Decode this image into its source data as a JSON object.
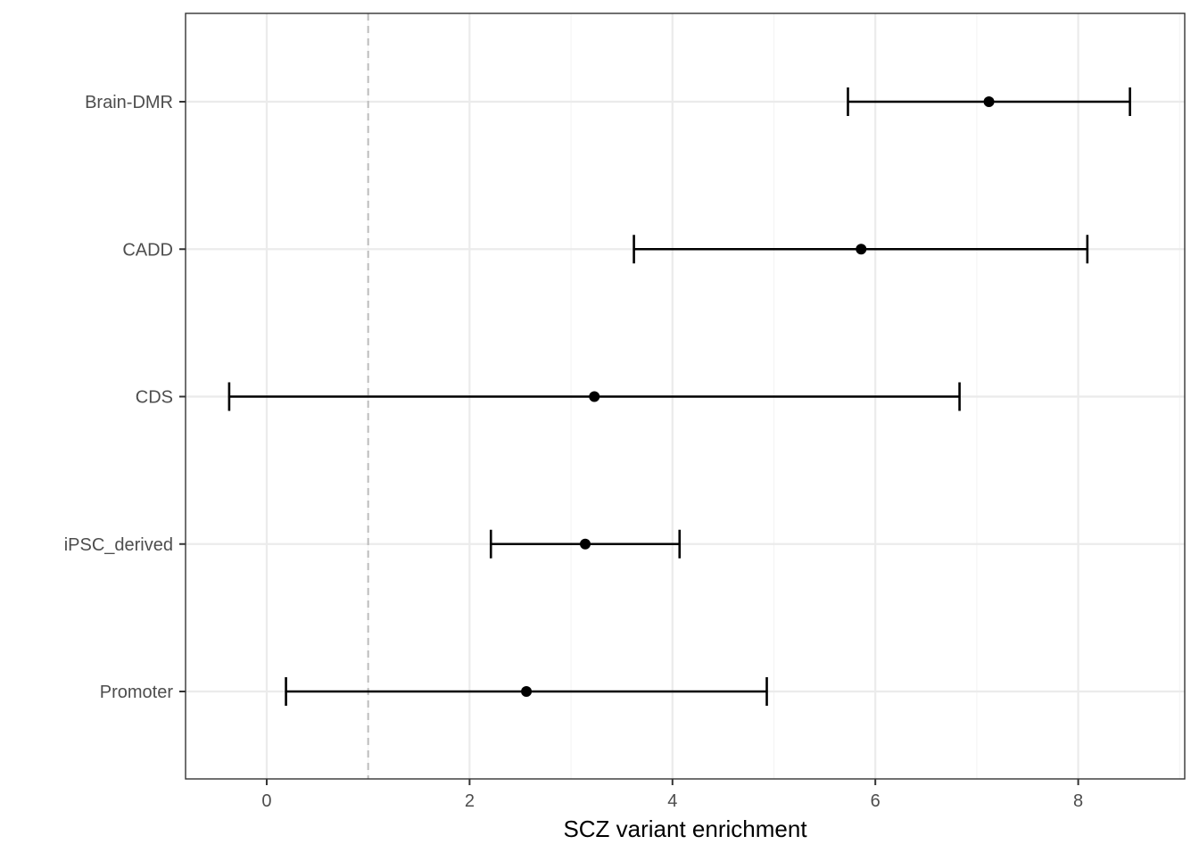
{
  "chart_data": {
    "type": "errorbar",
    "title": "",
    "xlabel": "SCZ variant enrichment",
    "ylabel": "",
    "xlim": [
      -0.8,
      9.05
    ],
    "x_ticks": [
      0,
      2,
      4,
      6,
      8
    ],
    "reference_line_x": 1,
    "grid": true,
    "legend": "none",
    "categories": [
      "Brain-DMR",
      "CADD",
      "CDS",
      "iPSC_derived",
      "Promoter"
    ],
    "points": [
      {
        "category": "Brain-DMR",
        "estimate": 7.12,
        "lower": 5.73,
        "upper": 8.51
      },
      {
        "category": "CADD",
        "estimate": 5.86,
        "lower": 3.62,
        "upper": 8.09
      },
      {
        "category": "CDS",
        "estimate": 3.23,
        "lower": -0.37,
        "upper": 6.83
      },
      {
        "category": "iPSC_derived",
        "estimate": 3.14,
        "lower": 2.21,
        "upper": 4.07
      },
      {
        "category": "Promoter",
        "estimate": 2.56,
        "lower": 0.19,
        "upper": 4.93
      }
    ],
    "colors": {
      "points": "#000000",
      "reference_line": "#bdbdbd",
      "grid_major": "#ebebeb",
      "grid_minor": "#f4f4f4",
      "panel_border": "#333333"
    }
  }
}
